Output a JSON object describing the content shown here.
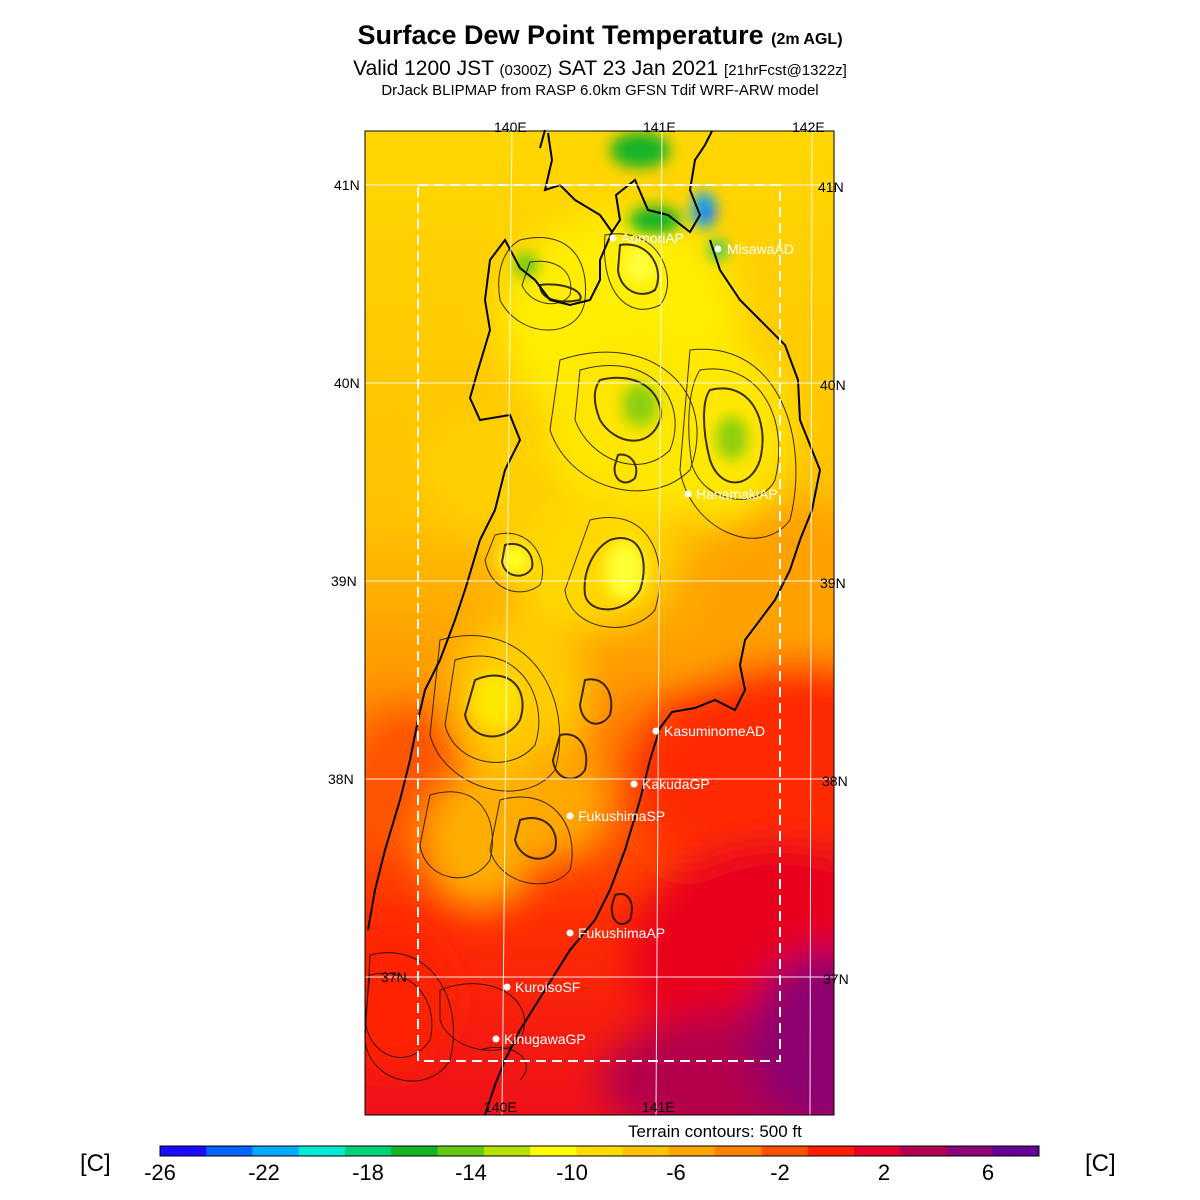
{
  "title": {
    "main": "Surface Dew Point Temperature",
    "main_suffix": "(2m AGL)",
    "valid_prefix": "Valid 1200 JST",
    "valid_zulu": "(0300Z)",
    "valid_date": "SAT 23 Jan 2021",
    "forecast": "[21hrFcst@1322z]",
    "model_line": "DrJack BLIPMAP from RASP 6.0km GFSN Tdif WRF-ARW model"
  },
  "axes": {
    "lon_top": [
      "140E",
      "141E",
      "142E"
    ],
    "lon_bottom": [
      "140E",
      "141E"
    ],
    "lat_left": [
      "41N",
      "40N",
      "39N",
      "38N",
      "37N"
    ],
    "lat_right": [
      "41N",
      "40N",
      "39N",
      "38N",
      "37N"
    ]
  },
  "stations": [
    {
      "name": "AomoriAP"
    },
    {
      "name": "MisawaAD"
    },
    {
      "name": "HanamakiAP"
    },
    {
      "name": "KasuminomeAD"
    },
    {
      "name": "KakudaGP"
    },
    {
      "name": "FukushimaSP"
    },
    {
      "name": "FukushimaAP"
    },
    {
      "name": "KuroisoSF"
    },
    {
      "name": "KinugawaGP"
    }
  ],
  "terrain_note": "Terrain contours: 500 ft",
  "colorbar": {
    "unit_label": "[C]",
    "tick_labels": [
      "-26",
      "-22",
      "-18",
      "-14",
      "-10",
      "-6",
      "-2",
      "2",
      "6"
    ],
    "colors": [
      "#1a0aff",
      "#0064ff",
      "#00aaff",
      "#00ebd2",
      "#00d278",
      "#14b428",
      "#64c814",
      "#b4e100",
      "#ffff00",
      "#ffdc00",
      "#ffc300",
      "#ffa500",
      "#ff8200",
      "#ff5000",
      "#ff1e00",
      "#e6002d",
      "#b40050",
      "#8c0078",
      "#640096"
    ]
  }
}
